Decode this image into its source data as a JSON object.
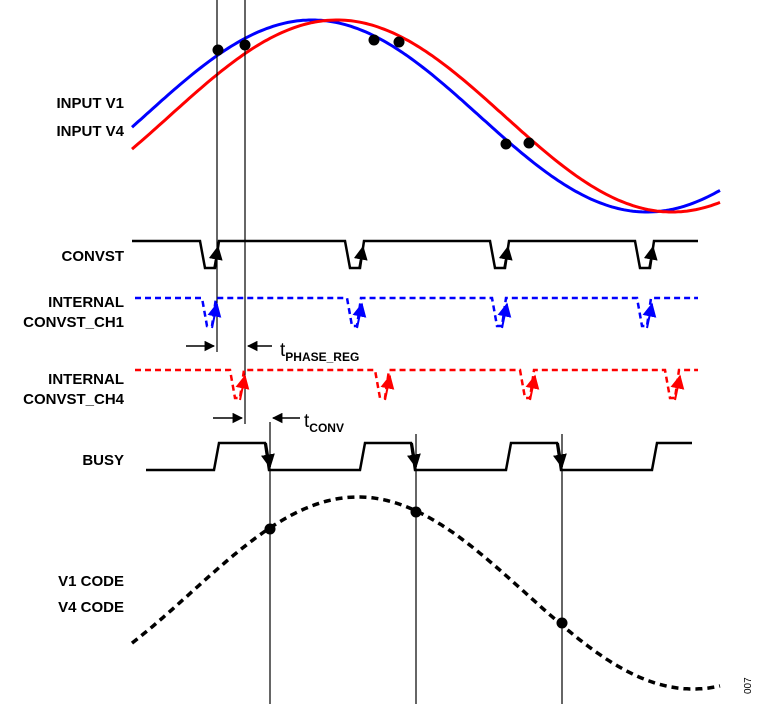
{
  "labels": {
    "input_v1": "INPUT V1",
    "input_v4": "INPUT V4",
    "convst": "CONVST",
    "internal_convst_ch1": [
      "INTERNAL",
      "CONVST_CH1"
    ],
    "internal_convst_ch4": [
      "INTERNAL",
      "CONVST_CH4"
    ],
    "busy": "BUSY",
    "v1_code": "V1 CODE",
    "v4_code": "V4 CODE"
  },
  "timing": {
    "phase_reg": {
      "symbol": "t",
      "subscript": "PHASE_REG"
    },
    "conv": {
      "symbol": "t",
      "subscript": "CONV"
    }
  },
  "figure_number": "007",
  "colors": {
    "v1": "#0000ff",
    "v4": "#ff0000",
    "signal": "#000000"
  }
}
